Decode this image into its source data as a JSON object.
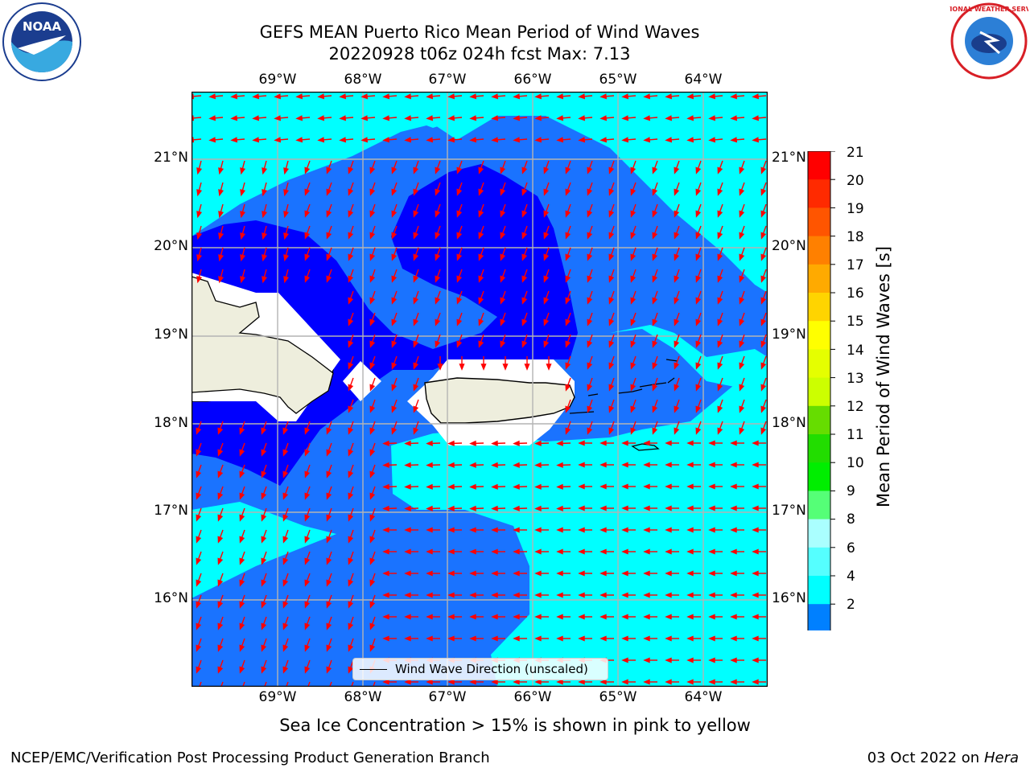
{
  "title": {
    "line1": "GEFS MEAN Puerto Rico Mean Period of Wind Waves",
    "line2": "20220928 t06z 024h fcst   Max: 7.13"
  },
  "axes": {
    "lon_labels": [
      "69°W",
      "68°W",
      "67°W",
      "66°W",
      "65°W",
      "64°W"
    ],
    "lat_labels": [
      "21°N",
      "20°N",
      "19°N",
      "18°N",
      "17°N",
      "16°N"
    ]
  },
  "legend": {
    "label": "Wind Wave Direction (unscaled)",
    "line_color": "#000000"
  },
  "colorbar": {
    "title": "Mean Period of Wind Waves [s]",
    "ticks": [
      "21",
      "20",
      "19",
      "18",
      "17",
      "16",
      "15",
      "14",
      "13",
      "12",
      "11",
      "10",
      "9",
      "8",
      "6",
      "4",
      "2"
    ],
    "colors": [
      "#ff0000",
      "#ff2a00",
      "#ff5500",
      "#ff8000",
      "#ffaa00",
      "#ffd400",
      "#ffff00",
      "#e5ff00",
      "#ccff00",
      "#66dd00",
      "#22dd00",
      "#00ee00",
      "#55ff77",
      "#aaffff",
      "#55ffff",
      "#00ffff",
      "#0080ff",
      "#0000ff"
    ]
  },
  "map_colors": {
    "range_2_4": "#1a73ff",
    "range_4_6": "#00ffff",
    "range_6_8": "#55ffff",
    "below_2": "#0000ff",
    "land": "#eeeedd",
    "arrows": "#ff0000"
  },
  "footer": {
    "note": "Sea Ice Concentration > 15% is shown in pink to yellow",
    "left": "NCEP/EMC/Verification Post Processing Product Generation Branch",
    "date": "03 Oct 2022 on ",
    "machine": "Hera"
  },
  "logos": {
    "left": "NOAA",
    "right": "NATIONAL WEATHER SERVICE"
  }
}
